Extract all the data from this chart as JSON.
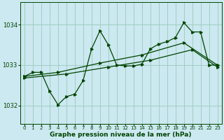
{
  "title": "Graphe pression niveau de la mer (hPa)",
  "bg_color": "#cce8f0",
  "grid_color": "#99ccbb",
  "line_color": "#004400",
  "xlim": [
    -0.5,
    23.5
  ],
  "ylim": [
    1031.55,
    1034.55
  ],
  "yticks": [
    1032,
    1033,
    1034
  ],
  "xticks": [
    0,
    1,
    2,
    3,
    4,
    5,
    6,
    7,
    8,
    9,
    10,
    11,
    12,
    13,
    14,
    15,
    16,
    17,
    18,
    19,
    20,
    21,
    22,
    23
  ],
  "trend1_x": [
    0,
    4,
    9,
    14,
    19,
    23
  ],
  "trend1_y": [
    1032.72,
    1032.82,
    1033.05,
    1033.25,
    1033.55,
    1033.0
  ],
  "trend2_x": [
    0,
    5,
    10,
    15,
    20,
    23
  ],
  "trend2_y": [
    1032.68,
    1032.78,
    1032.95,
    1033.12,
    1033.38,
    1032.95
  ],
  "zigzag_x": [
    0,
    1,
    2,
    3,
    4,
    5,
    6,
    7,
    8,
    9,
    10,
    11,
    12,
    13,
    14,
    15,
    16,
    17,
    18,
    19,
    20,
    21,
    22,
    23
  ],
  "zigzag_y": [
    1032.72,
    1032.82,
    1032.82,
    1032.35,
    1032.02,
    1032.22,
    1032.28,
    1032.62,
    1033.4,
    1033.85,
    1033.5,
    1033.0,
    1032.98,
    1032.98,
    1033.02,
    1033.4,
    1033.52,
    1033.58,
    1033.68,
    1034.05,
    1033.82,
    1033.82,
    1033.0,
    1033.0
  ],
  "marker_size": 2.5,
  "line_width": 0.9,
  "xlabel_size": 6.5
}
